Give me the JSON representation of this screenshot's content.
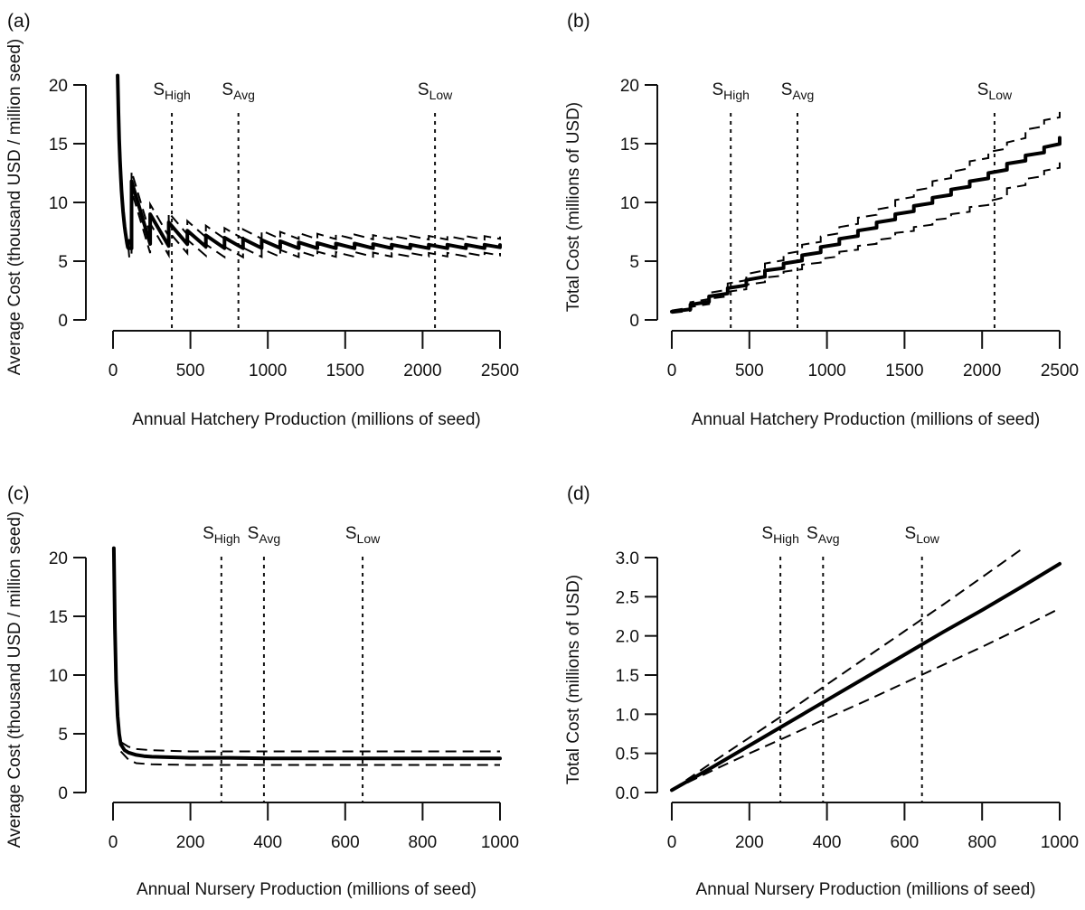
{
  "chart_data": [
    {
      "panel": "(a)",
      "type": "line",
      "title": "",
      "xlabel": "Annual Hatchery Production (millions of seed)",
      "ylabel": "Average Cost (thousand USD / million seed)",
      "xlim": [
        0,
        2500
      ],
      "ylim": [
        0,
        20
      ],
      "xticks": [
        "0",
        "500",
        "1000",
        "1500",
        "2000",
        "2500"
      ],
      "yticks": [
        "0",
        "5",
        "10",
        "15",
        "20"
      ],
      "vlines": [
        {
          "base": "S",
          "sub": "High",
          "x": 380
        },
        {
          "base": "S",
          "sub": "Avg",
          "x": 810
        },
        {
          "base": "S",
          "sub": "Low",
          "x": 2080
        }
      ],
      "shape": "sawtooth-average",
      "series": [
        {
          "name": "mean",
          "style": "solid",
          "step": 120,
          "floor": 6.1,
          "peak_decay": [
            11.8,
            9.0,
            8.3,
            7.6,
            7.2,
            7.0,
            6.9,
            6.8,
            6.7,
            6.6,
            6.55,
            6.5,
            6.5,
            6.45,
            6.4,
            6.4,
            6.4,
            6.4,
            6.4,
            6.4,
            6.35
          ]
        },
        {
          "name": "upper",
          "style": "dashed",
          "offset": 0.85
        },
        {
          "name": "lower",
          "style": "dashed",
          "offset": -0.8
        }
      ]
    },
    {
      "panel": "(b)",
      "type": "line",
      "title": "",
      "xlabel": "Annual Hatchery Production (millions of seed)",
      "ylabel": "Total Cost (millions of USD)",
      "xlim": [
        0,
        2500
      ],
      "ylim": [
        0,
        20
      ],
      "xticks": [
        "0",
        "500",
        "1000",
        "1500",
        "2000",
        "2500"
      ],
      "yticks": [
        "0",
        "5",
        "10",
        "15",
        "20"
      ],
      "vlines": [
        {
          "base": "S",
          "sub": "High",
          "x": 380
        },
        {
          "base": "S",
          "sub": "Avg",
          "x": 810
        },
        {
          "base": "S",
          "sub": "Low",
          "x": 2080
        }
      ],
      "shape": "staircase-total",
      "series": [
        {
          "name": "mean",
          "style": "solid",
          "x": [
            0,
            120,
            240,
            360,
            480,
            600,
            720,
            840,
            960,
            1080,
            1200,
            1320,
            1440,
            1560,
            1680,
            1800,
            1920,
            2040,
            2160,
            2280,
            2400,
            2500
          ],
          "y": [
            0.7,
            1.3,
            2.0,
            2.7,
            3.4,
            4.2,
            4.8,
            5.5,
            6.2,
            6.9,
            7.6,
            8.3,
            9.0,
            9.7,
            10.4,
            11.1,
            11.8,
            12.5,
            13.3,
            14.0,
            14.7,
            15.5
          ]
        },
        {
          "name": "upper",
          "style": "dashed",
          "x": [
            0,
            120,
            240,
            360,
            480,
            600,
            720,
            840,
            960,
            1080,
            1200,
            1320,
            1440,
            1560,
            1680,
            1800,
            1920,
            2040,
            2160,
            2280,
            2400,
            2500
          ],
          "y": [
            0.8,
            1.5,
            2.3,
            3.1,
            3.9,
            4.8,
            5.6,
            6.4,
            7.1,
            7.9,
            8.7,
            9.4,
            10.2,
            11.0,
            11.8,
            12.6,
            13.5,
            14.3,
            15.1,
            16.2,
            17.0,
            17.7
          ]
        },
        {
          "name": "lower",
          "style": "dashed",
          "x": [
            0,
            120,
            240,
            360,
            480,
            600,
            720,
            840,
            960,
            1080,
            1200,
            1320,
            1440,
            1560,
            1680,
            1800,
            1920,
            2040,
            2160,
            2280,
            2400,
            2500
          ],
          "y": [
            0.6,
            1.1,
            1.8,
            2.4,
            3.0,
            3.6,
            4.1,
            4.7,
            5.2,
            5.8,
            6.3,
            6.8,
            7.4,
            7.9,
            8.5,
            9.0,
            9.6,
            10.1,
            11.2,
            12.0,
            12.7,
            13.4
          ]
        }
      ]
    },
    {
      "panel": "(c)",
      "type": "line",
      "title": "",
      "xlabel": "Annual Nursery Production (millions of seed)",
      "ylabel": "Average Cost (thousand USD / million seed)",
      "xlim": [
        0,
        1000
      ],
      "ylim": [
        0,
        20
      ],
      "xticks": [
        "0",
        "200",
        "400",
        "600",
        "800",
        "1000"
      ],
      "yticks": [
        "0",
        "5",
        "10",
        "15",
        "20"
      ],
      "vlines": [
        {
          "base": "S",
          "sub": "High",
          "x": 280
        },
        {
          "base": "S",
          "sub": "Avg",
          "x": 390
        },
        {
          "base": "S",
          "sub": "Low",
          "x": 645
        }
      ],
      "series": [
        {
          "name": "mean",
          "style": "solid",
          "x": [
            2,
            5,
            8,
            12,
            16,
            20,
            30,
            40,
            60,
            80,
            100,
            150,
            200,
            300,
            400,
            500,
            600,
            700,
            800,
            900,
            1000
          ],
          "y": [
            20.8,
            14.0,
            9.5,
            6.5,
            5.0,
            4.1,
            3.6,
            3.4,
            3.2,
            3.1,
            3.05,
            3.0,
            2.95,
            2.95,
            2.9,
            2.9,
            2.9,
            2.9,
            2.9,
            2.9,
            2.9
          ]
        },
        {
          "name": "upper",
          "style": "dashed",
          "x": [
            20,
            40,
            60,
            100,
            200,
            300,
            400,
            500,
            600,
            700,
            800,
            900,
            1000
          ],
          "y": [
            4.3,
            3.9,
            3.7,
            3.6,
            3.5,
            3.5,
            3.5,
            3.5,
            3.5,
            3.5,
            3.5,
            3.5,
            3.5
          ]
        },
        {
          "name": "lower",
          "style": "dashed",
          "x": [
            20,
            40,
            60,
            100,
            200,
            300,
            400,
            500,
            600,
            700,
            800,
            900,
            1000
          ],
          "y": [
            3.5,
            2.8,
            2.5,
            2.4,
            2.35,
            2.35,
            2.35,
            2.35,
            2.35,
            2.35,
            2.35,
            2.35,
            2.35
          ]
        }
      ]
    },
    {
      "panel": "(d)",
      "type": "line",
      "title": "",
      "xlabel": "Annual Nursery Production (millions of seed)",
      "ylabel": "Total Cost (millions of USD)",
      "xlim": [
        0,
        1000
      ],
      "ylim": [
        0,
        3.0
      ],
      "xticks": [
        "0",
        "200",
        "400",
        "600",
        "800",
        "1000"
      ],
      "yticks": [
        "0.0",
        "0.5",
        "1.0",
        "1.5",
        "2.0",
        "2.5",
        "3.0"
      ],
      "vlines": [
        {
          "base": "S",
          "sub": "High",
          "x": 280
        },
        {
          "base": "S",
          "sub": "Avg",
          "x": 390
        },
        {
          "base": "S",
          "sub": "Low",
          "x": 645
        }
      ],
      "series": [
        {
          "name": "mean",
          "style": "solid",
          "x": [
            0,
            100,
            200,
            300,
            400,
            500,
            600,
            700,
            800,
            900,
            1000
          ],
          "y": [
            0.03,
            0.31,
            0.6,
            0.89,
            1.18,
            1.47,
            1.76,
            2.05,
            2.33,
            2.62,
            2.92
          ]
        },
        {
          "name": "upper",
          "style": "dashed",
          "x": [
            0,
            100,
            200,
            300,
            400,
            500,
            600,
            700,
            800,
            900
          ],
          "y": [
            0.03,
            0.37,
            0.7,
            1.03,
            1.38,
            1.72,
            2.06,
            2.4,
            2.75,
            3.1
          ]
        },
        {
          "name": "lower",
          "style": "dashed",
          "x": [
            0,
            100,
            200,
            300,
            400,
            500,
            600,
            700,
            800,
            900,
            1000
          ],
          "y": [
            0.03,
            0.27,
            0.5,
            0.72,
            0.95,
            1.17,
            1.4,
            1.63,
            1.86,
            2.1,
            2.35
          ]
        }
      ]
    }
  ]
}
